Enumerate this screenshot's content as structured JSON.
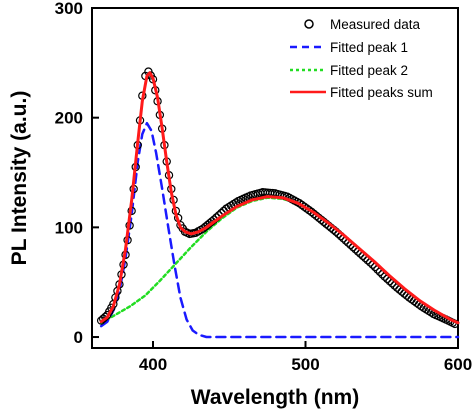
{
  "chart_data": {
    "type": "line",
    "xlabel": "Wavelength (nm)",
    "ylabel": "PL Intensity (a.u.)",
    "xlim": [
      360,
      600
    ],
    "ylim": [
      -10,
      300
    ],
    "x_ticks": [
      400,
      500,
      600
    ],
    "y_ticks": [
      0,
      100,
      200,
      300
    ],
    "legend_position": "top-right",
    "legend": [
      {
        "label": "Measured data",
        "style": "open-circle",
        "color": "#000000"
      },
      {
        "label": "Fitted peak 1",
        "style": "dashed",
        "color": "#1a1aff"
      },
      {
        "label": "Fitted peak 2",
        "style": "dotted",
        "color": "#22dd22"
      },
      {
        "label": "Fitted peaks sum",
        "style": "solid",
        "color": "#ff1a1a"
      }
    ],
    "series": [
      {
        "name": "Measured data",
        "color": "#000000",
        "points": [
          [
            366,
            15
          ],
          [
            370,
            20
          ],
          [
            374,
            30
          ],
          [
            378,
            48
          ],
          [
            382,
            75
          ],
          [
            386,
            115
          ],
          [
            390,
            175
          ],
          [
            393,
            220
          ],
          [
            395,
            238
          ],
          [
            397,
            242
          ],
          [
            400,
            235
          ],
          [
            403,
            215
          ],
          [
            406,
            190
          ],
          [
            409,
            160
          ],
          [
            412,
            135
          ],
          [
            415,
            115
          ],
          [
            418,
            102
          ],
          [
            421,
            96
          ],
          [
            424,
            94
          ],
          [
            428,
            95
          ],
          [
            433,
            99
          ],
          [
            440,
            107
          ],
          [
            448,
            117
          ],
          [
            456,
            124
          ],
          [
            464,
            129
          ],
          [
            472,
            132
          ],
          [
            480,
            131
          ],
          [
            488,
            128
          ],
          [
            496,
            122
          ],
          [
            504,
            114
          ],
          [
            512,
            105
          ],
          [
            520,
            96
          ],
          [
            528,
            86
          ],
          [
            536,
            76
          ],
          [
            544,
            66
          ],
          [
            552,
            55
          ],
          [
            560,
            45
          ],
          [
            568,
            36
          ],
          [
            576,
            28
          ],
          [
            584,
            21
          ],
          [
            592,
            16
          ],
          [
            598,
            12
          ]
        ]
      },
      {
        "name": "Fitted peak 1",
        "color": "#1a1aff",
        "points": [
          [
            366,
            10
          ],
          [
            370,
            14
          ],
          [
            374,
            24
          ],
          [
            378,
            42
          ],
          [
            382,
            72
          ],
          [
            386,
            112
          ],
          [
            390,
            160
          ],
          [
            393,
            185
          ],
          [
            396,
            195
          ],
          [
            399,
            188
          ],
          [
            402,
            168
          ],
          [
            406,
            135
          ],
          [
            410,
            100
          ],
          [
            414,
            66
          ],
          [
            418,
            36
          ],
          [
            422,
            16
          ],
          [
            426,
            6
          ],
          [
            430,
            2
          ],
          [
            435,
            0
          ],
          [
            450,
            0
          ],
          [
            500,
            0
          ],
          [
            550,
            0
          ],
          [
            600,
            0
          ]
        ]
      },
      {
        "name": "Fitted peak 2",
        "color": "#22dd22",
        "points": [
          [
            366,
            13
          ],
          [
            375,
            20
          ],
          [
            385,
            28
          ],
          [
            395,
            38
          ],
          [
            405,
            52
          ],
          [
            415,
            67
          ],
          [
            425,
            82
          ],
          [
            435,
            96
          ],
          [
            445,
            108
          ],
          [
            455,
            118
          ],
          [
            465,
            124
          ],
          [
            475,
            127
          ],
          [
            485,
            126
          ],
          [
            495,
            122
          ],
          [
            505,
            114
          ],
          [
            515,
            104
          ],
          [
            525,
            93
          ],
          [
            535,
            81
          ],
          [
            545,
            69
          ],
          [
            555,
            56
          ],
          [
            565,
            44
          ],
          [
            575,
            33
          ],
          [
            585,
            24
          ],
          [
            595,
            16
          ],
          [
            600,
            13
          ]
        ]
      },
      {
        "name": "Fitted peaks sum",
        "color": "#ff1a1a",
        "points": [
          [
            366,
            14
          ],
          [
            370,
            18
          ],
          [
            374,
            28
          ],
          [
            378,
            48
          ],
          [
            382,
            80
          ],
          [
            386,
            125
          ],
          [
            390,
            178
          ],
          [
            393,
            215
          ],
          [
            396,
            238
          ],
          [
            398,
            241
          ],
          [
            400,
            236
          ],
          [
            403,
            218
          ],
          [
            406,
            190
          ],
          [
            409,
            160
          ],
          [
            412,
            132
          ],
          [
            415,
            112
          ],
          [
            418,
            100
          ],
          [
            421,
            96
          ],
          [
            425,
            94
          ],
          [
            430,
            96
          ],
          [
            435,
            100
          ],
          [
            445,
            110
          ],
          [
            455,
            119
          ],
          [
            465,
            125
          ],
          [
            475,
            128
          ],
          [
            485,
            127
          ],
          [
            495,
            122
          ],
          [
            505,
            114
          ],
          [
            515,
            104
          ],
          [
            525,
            93
          ],
          [
            535,
            81
          ],
          [
            545,
            69
          ],
          [
            555,
            56
          ],
          [
            565,
            44
          ],
          [
            575,
            33
          ],
          [
            585,
            24
          ],
          [
            595,
            16
          ],
          [
            600,
            13
          ]
        ]
      }
    ]
  }
}
